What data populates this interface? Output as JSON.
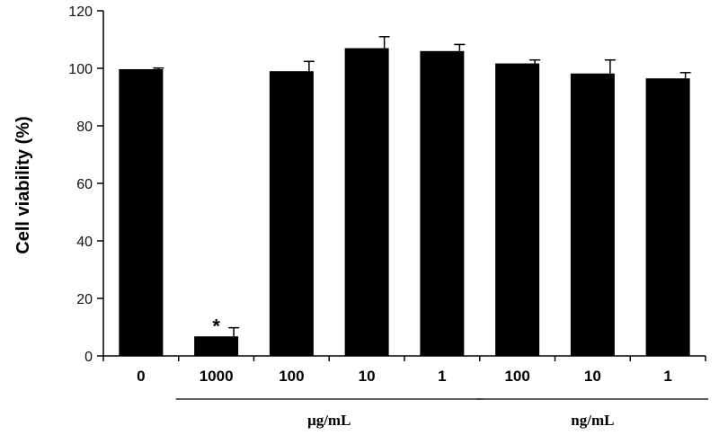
{
  "chart_data": {
    "type": "bar",
    "title": "",
    "xlabel": "",
    "ylabel": "Cell viability (%)",
    "ylim": [
      0,
      120
    ],
    "yticks": [
      0,
      20,
      40,
      60,
      80,
      100,
      120
    ],
    "grid": false,
    "categories": [
      "0",
      "1000",
      "100",
      "10",
      "1",
      "100",
      "10",
      "1"
    ],
    "values": [
      99.7,
      6.8,
      99.0,
      107.0,
      106.0,
      101.7,
      98.2,
      96.5
    ],
    "error": [
      0.4,
      3.0,
      3.4,
      4.0,
      2.3,
      1.2,
      4.7,
      2.0
    ],
    "bar_color": "#000000",
    "annotations": [
      {
        "category_index": 1,
        "text": "*"
      }
    ],
    "groups": [
      {
        "label": "μg/mL",
        "from_index": 1,
        "to_index": 4
      },
      {
        "label": "ng/mL",
        "from_index": 5,
        "to_index": 7
      }
    ]
  }
}
